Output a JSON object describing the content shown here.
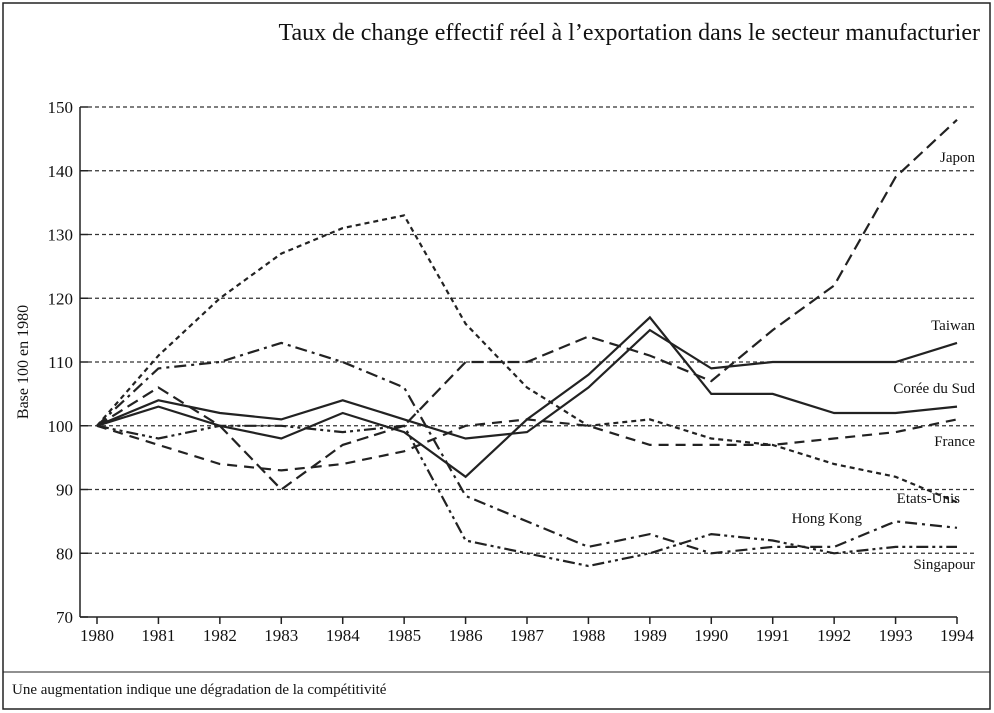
{
  "chart_data": {
    "type": "line",
    "title": "Taux de change effectif réel à l’exportation dans le secteur manufacturier",
    "ylabel": "Base 100 en 1980",
    "note": "Une augmentation indique une dégradation de la compétitivité",
    "x": [
      1980,
      1981,
      1982,
      1983,
      1984,
      1985,
      1986,
      1987,
      1988,
      1989,
      1990,
      1991,
      1992,
      1993,
      1994
    ],
    "xlim": [
      1980,
      1994
    ],
    "xticks": [
      1980,
      1981,
      1982,
      1983,
      1984,
      1985,
      1986,
      1987,
      1988,
      1989,
      1990,
      1991,
      1992,
      1993,
      1994
    ],
    "ylim": [
      70,
      150
    ],
    "yticks": [
      70,
      80,
      90,
      100,
      110,
      120,
      130,
      140,
      150
    ],
    "grid": true,
    "series": [
      {
        "name": "Japon",
        "color": "#222222",
        "values": [
          100,
          106,
          100,
          90,
          97,
          100,
          110,
          110,
          114,
          111,
          107,
          115,
          122,
          139,
          148
        ]
      },
      {
        "name": "Taiwan",
        "color": "#222222",
        "values": [
          100,
          104,
          102,
          101,
          104,
          101,
          98,
          99,
          106,
          115,
          109,
          110,
          110,
          110,
          113
        ]
      },
      {
        "name": "Corée du Sud",
        "color": "#222222",
        "values": [
          100,
          103,
          100,
          98,
          102,
          99,
          92,
          101,
          108,
          117,
          105,
          105,
          102,
          102,
          103
        ]
      },
      {
        "name": "France",
        "color": "#222222",
        "values": [
          100,
          97,
          94,
          93,
          94,
          96,
          100,
          101,
          100,
          97,
          97,
          97,
          98,
          99,
          101
        ]
      },
      {
        "name": "Etats-Unis",
        "color": "#222222",
        "values": [
          100,
          111,
          120,
          127,
          131,
          133,
          116,
          106,
          100,
          101,
          98,
          97,
          94,
          92,
          88
        ]
      },
      {
        "name": "Hong Kong",
        "color": "#222222",
        "values": [
          100,
          109,
          110,
          113,
          110,
          106,
          89,
          85,
          81,
          83,
          80,
          81,
          81,
          85,
          84
        ]
      },
      {
        "name": "Singapour",
        "color": "#222222",
        "values": [
          100,
          98,
          100,
          100,
          99,
          100,
          82,
          80,
          78,
          80,
          83,
          82,
          80,
          81,
          81
        ]
      }
    ]
  }
}
